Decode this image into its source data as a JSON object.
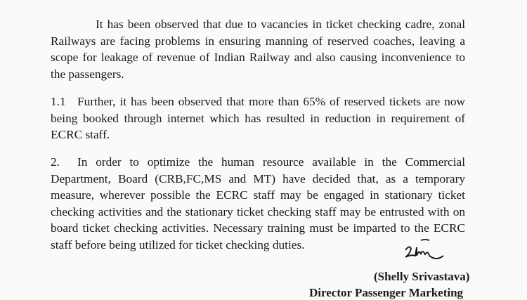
{
  "paragraphs": {
    "p1": "It has been observed that due to vacancies in ticket checking cadre, zonal Railways are facing problems in ensuring manning of reserved coaches, leaving a scope for leakage of revenue of Indian Railway and also causing inconvenience to the passengers.",
    "p11_num": "1.1",
    "p11": "Further, it has been observed that more than 65% of reserved tickets are now being booked through internet which has resulted in reduction in requirement of ECRC staff.",
    "p2_num": "2.",
    "p2": "In order to optimize the human resource available in the Commercial Department, Board (CRB,FC,MS and MT) have decided that, as a temporary measure, wherever possible the ECRC staff may be engaged in stationary ticket checking activities and the stationary ticket checking staff may be entrusted with on board ticket checking activities. Necessary training must be imparted to the ECRC staff before being utilized for ticket checking duties."
  },
  "signatory": {
    "signature": "Shelly",
    "name": "(Shelly Srivastava)",
    "designation": "Director Passenger Marketing"
  }
}
